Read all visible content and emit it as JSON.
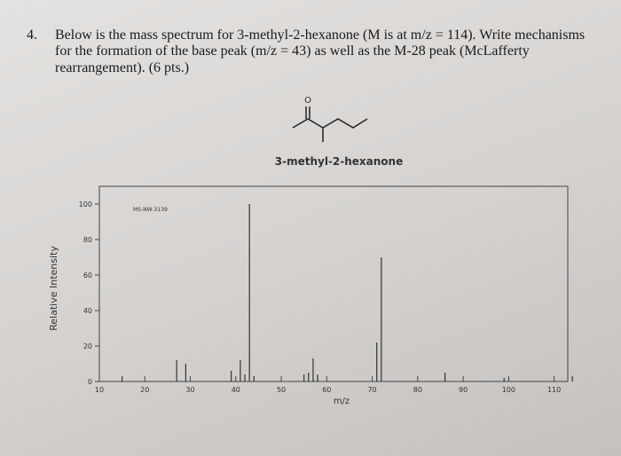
{
  "question": {
    "number": "4.",
    "lines": [
      "Below is the mass spectrum for 3-methyl-2-hexanone (M is at m/z = 114). Write mechanisms",
      "for the formation of the base peak (m/z = 43) as well as the M-28 peak (McLafferty",
      "rearrangement). (6 pts.)"
    ]
  },
  "molecule_name": "3-methyl-2-hexanone",
  "chart_data": {
    "type": "bar",
    "annotation": "MS-NW-3139",
    "x_label": "m/z",
    "y_label": "Relative Intensity",
    "x": [
      15,
      27,
      29,
      39,
      41,
      42,
      43,
      44,
      55,
      56,
      57,
      58,
      71,
      72,
      86,
      99,
      114
    ],
    "values": [
      3,
      12,
      10,
      6,
      12,
      4,
      100,
      3,
      4,
      5,
      13,
      4,
      22,
      70,
      5,
      2,
      3
    ],
    "color": "#333333",
    "xlim": [
      10,
      113
    ],
    "xticks": [
      10,
      20,
      30,
      40,
      50,
      60,
      70,
      80,
      90,
      100,
      110
    ],
    "ylim": [
      0,
      110
    ],
    "yticks": [
      0,
      20,
      40,
      60,
      80,
      100
    ]
  }
}
